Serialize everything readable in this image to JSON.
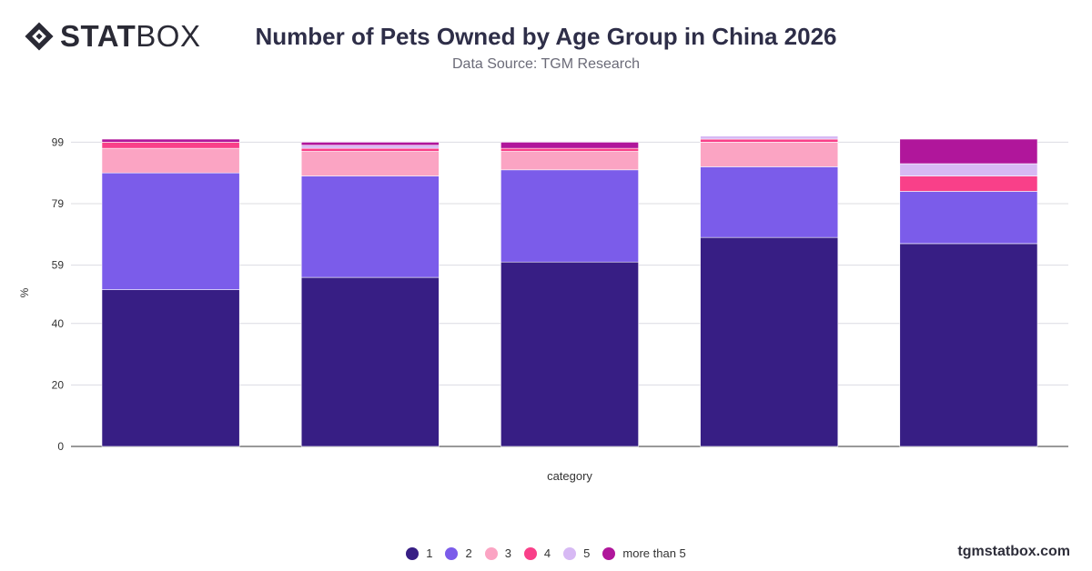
{
  "brand": {
    "logo_bold": "STAT",
    "logo_light": "BOX",
    "watermark": "tgmstatbox.com"
  },
  "chart_data": {
    "type": "bar",
    "stacked": true,
    "title": "Number of Pets Owned by Age Group in China 2026",
    "subtitle": "Data Source: TGM Research",
    "xlabel": "category",
    "ylabel": "%",
    "ylim": [
      0,
      100
    ],
    "yticks": [
      0,
      20,
      40,
      59,
      79,
      99
    ],
    "categories": [
      "",
      "",
      "",
      "",
      ""
    ],
    "series": [
      {
        "name": "1",
        "color": "#371e84",
        "values": [
          51,
          55,
          60,
          68,
          66
        ]
      },
      {
        "name": "2",
        "color": "#7b5cea",
        "values": [
          38,
          33,
          30,
          23,
          17
        ]
      },
      {
        "name": "3",
        "color": "#fba4c3",
        "values": [
          8,
          8,
          6,
          8,
          0
        ]
      },
      {
        "name": "4",
        "color": "#f94089",
        "values": [
          2,
          1,
          1,
          1,
          5
        ]
      },
      {
        "name": "5",
        "color": "#d7b9f4",
        "values": [
          0,
          1,
          0,
          1,
          4
        ]
      },
      {
        "name": "more than 5",
        "color": "#b0169b",
        "values": [
          1,
          1,
          2,
          0,
          8
        ]
      }
    ],
    "grid": true,
    "legend_position": "bottom"
  }
}
